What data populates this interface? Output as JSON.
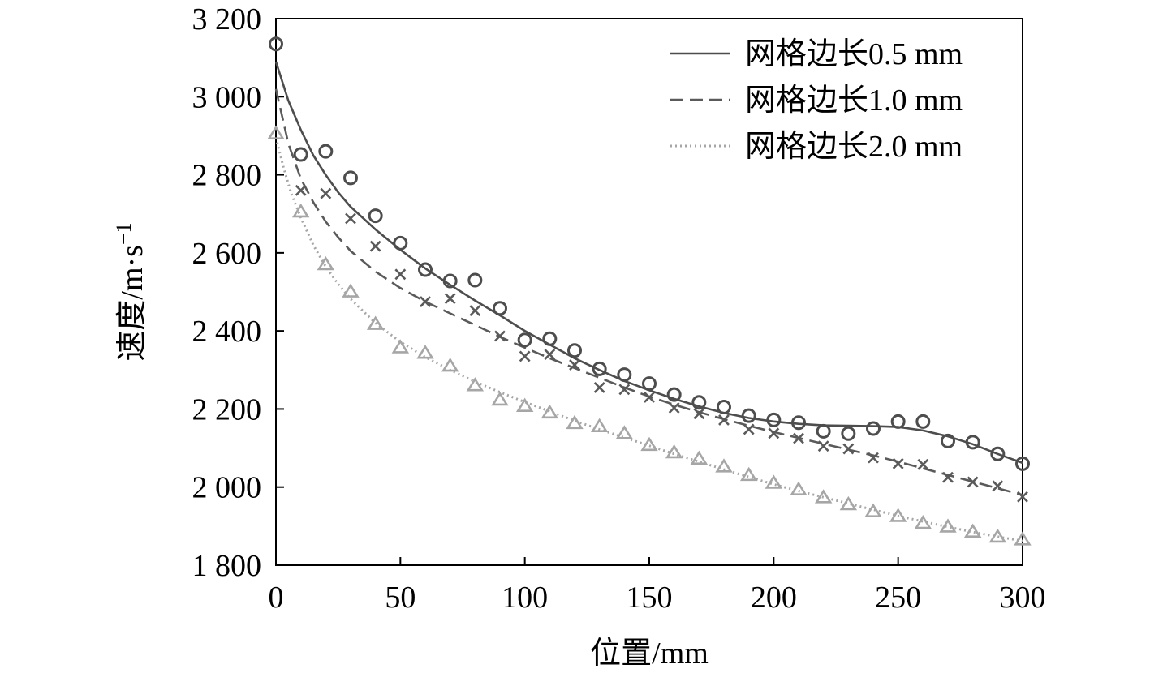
{
  "chart_data": {
    "type": "line",
    "xlabel": "位置/mm",
    "ylabel_main": "速度/m·s",
    "ylabel_sup": "−1",
    "xlim": [
      0,
      300
    ],
    "ylim": [
      1800,
      3200
    ],
    "x_ticks": [
      0,
      50,
      100,
      150,
      200,
      250,
      300
    ],
    "x_tick_labels": [
      "0",
      "50",
      "100",
      "150",
      "200",
      "250",
      "300"
    ],
    "y_ticks": [
      1800,
      2000,
      2200,
      2400,
      2600,
      2800,
      3000,
      3200
    ],
    "y_tick_labels": [
      "1 800",
      "2 000",
      "2 200",
      "2 400",
      "2 600",
      "2 800",
      "3 000",
      "3 200"
    ],
    "grid": false,
    "legend_position": "top-right",
    "series": [
      {
        "name": "网格边长0.5 mm",
        "color": "#4d4d4d",
        "line_style": "solid",
        "marker": "circle",
        "points_x": [
          0,
          10,
          20,
          30,
          40,
          50,
          60,
          70,
          80,
          90,
          100,
          110,
          120,
          130,
          140,
          150,
          160,
          170,
          180,
          190,
          200,
          210,
          220,
          230,
          240,
          250,
          260,
          270,
          280,
          290,
          300
        ],
        "points_y": [
          3135,
          2852,
          2860,
          2792,
          2695,
          2625,
          2557,
          2528,
          2530,
          2458,
          2377,
          2380,
          2350,
          2303,
          2288,
          2265,
          2237,
          2217,
          2205,
          2183,
          2172,
          2165,
          2143,
          2137,
          2150,
          2168,
          2168,
          2118,
          2115,
          2085,
          2060
        ],
        "curve_x": [
          0,
          5,
          10,
          15,
          20,
          25,
          30,
          40,
          50,
          60,
          70,
          80,
          90,
          100,
          110,
          120,
          130,
          140,
          150,
          160,
          170,
          180,
          190,
          200,
          210,
          220,
          230,
          240,
          250,
          260,
          270,
          280,
          290,
          300
        ],
        "curve_y": [
          3090,
          2990,
          2915,
          2850,
          2800,
          2755,
          2718,
          2660,
          2608,
          2560,
          2518,
          2478,
          2440,
          2400,
          2365,
          2330,
          2300,
          2272,
          2248,
          2226,
          2207,
          2190,
          2177,
          2168,
          2162,
          2158,
          2157,
          2156,
          2154,
          2145,
          2130,
          2110,
          2085,
          2062
        ]
      },
      {
        "name": "网格边长1.0 mm",
        "color": "#5a5a5a",
        "line_style": "dashed",
        "marker": "cross",
        "points_x": [
          10,
          20,
          30,
          40,
          50,
          60,
          70,
          80,
          90,
          100,
          110,
          120,
          130,
          140,
          150,
          160,
          170,
          180,
          190,
          200,
          210,
          220,
          230,
          240,
          250,
          260,
          270,
          280,
          290,
          300
        ],
        "points_y": [
          2760,
          2752,
          2688,
          2617,
          2545,
          2475,
          2483,
          2452,
          2387,
          2335,
          2340,
          2313,
          2255,
          2250,
          2230,
          2203,
          2188,
          2172,
          2148,
          2138,
          2125,
          2105,
          2098,
          2075,
          2060,
          2058,
          2025,
          2013,
          2003,
          1975
        ],
        "curve_x": [
          0,
          5,
          10,
          15,
          20,
          25,
          30,
          40,
          50,
          60,
          70,
          80,
          90,
          100,
          110,
          120,
          130,
          140,
          150,
          160,
          170,
          180,
          190,
          200,
          210,
          220,
          230,
          240,
          250,
          260,
          270,
          280,
          290,
          300
        ],
        "curve_y": [
          3020,
          2880,
          2790,
          2730,
          2680,
          2640,
          2605,
          2552,
          2510,
          2475,
          2445,
          2415,
          2385,
          2357,
          2330,
          2305,
          2280,
          2255,
          2232,
          2211,
          2192,
          2174,
          2157,
          2141,
          2126,
          2111,
          2096,
          2081,
          2065,
          2048,
          2031,
          2014,
          1997,
          1980
        ]
      },
      {
        "name": "网格边长2.0 mm",
        "color": "#a6a6a6",
        "line_style": "dotted",
        "marker": "triangle",
        "points_x": [
          0,
          10,
          20,
          30,
          40,
          50,
          60,
          70,
          80,
          90,
          100,
          110,
          120,
          130,
          140,
          150,
          160,
          170,
          180,
          190,
          200,
          210,
          220,
          230,
          240,
          250,
          260,
          270,
          280,
          290,
          300
        ],
        "points_y": [
          2905,
          2705,
          2570,
          2500,
          2417,
          2357,
          2343,
          2310,
          2260,
          2223,
          2207,
          2190,
          2163,
          2155,
          2137,
          2107,
          2088,
          2072,
          2052,
          2030,
          2010,
          1993,
          1973,
          1955,
          1937,
          1925,
          1907,
          1898,
          1885,
          1872,
          1865
        ],
        "curve_x": [
          0,
          3,
          6,
          10,
          15,
          20,
          25,
          30,
          40,
          50,
          60,
          70,
          80,
          90,
          100,
          110,
          120,
          130,
          140,
          150,
          160,
          170,
          180,
          190,
          200,
          210,
          220,
          230,
          240,
          250,
          260,
          270,
          280,
          290,
          300
        ],
        "curve_y": [
          2895,
          2820,
          2755,
          2690,
          2620,
          2565,
          2520,
          2482,
          2420,
          2372,
          2333,
          2300,
          2270,
          2243,
          2218,
          2194,
          2170,
          2148,
          2127,
          2106,
          2085,
          2065,
          2045,
          2026,
          2007,
          1990,
          1974,
          1958,
          1942,
          1926,
          1912,
          1898,
          1885,
          1873,
          1862
        ]
      }
    ]
  }
}
